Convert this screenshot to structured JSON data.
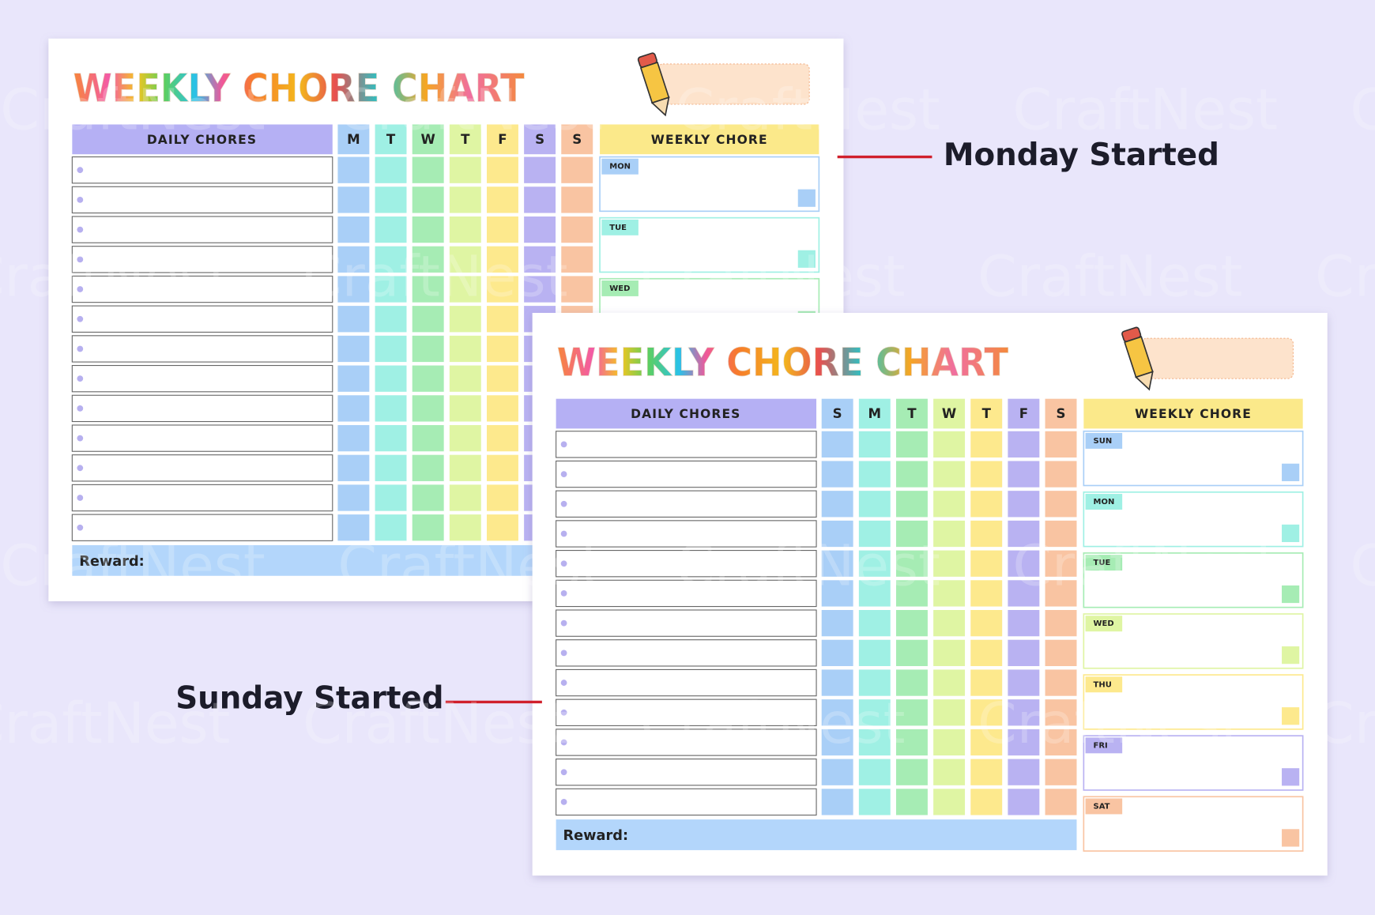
{
  "watermark": "CraftNest",
  "labels": {
    "monday": "Monday Started",
    "sunday": "Sunday Started"
  },
  "charts": [
    {
      "title": "WEEKLY CHORE CHART",
      "daily_header": "DAILY CHORES",
      "days": [
        "M",
        "T",
        "W",
        "T",
        "F",
        "S",
        "S"
      ],
      "weekly_header": "WEEKLY CHORE",
      "weekly_days": [
        "MON",
        "TUE",
        "WED"
      ],
      "reward": "Reward:"
    },
    {
      "title": "WEEKLY CHORE CHART",
      "daily_header": "DAILY CHORES",
      "days": [
        "S",
        "M",
        "T",
        "W",
        "T",
        "F",
        "S"
      ],
      "weekly_header": "WEEKLY CHORE",
      "weekly_days": [
        "SUN",
        "MON",
        "TUE",
        "WED",
        "THU",
        "FRI",
        "SAT"
      ],
      "reward": "Reward:"
    }
  ]
}
